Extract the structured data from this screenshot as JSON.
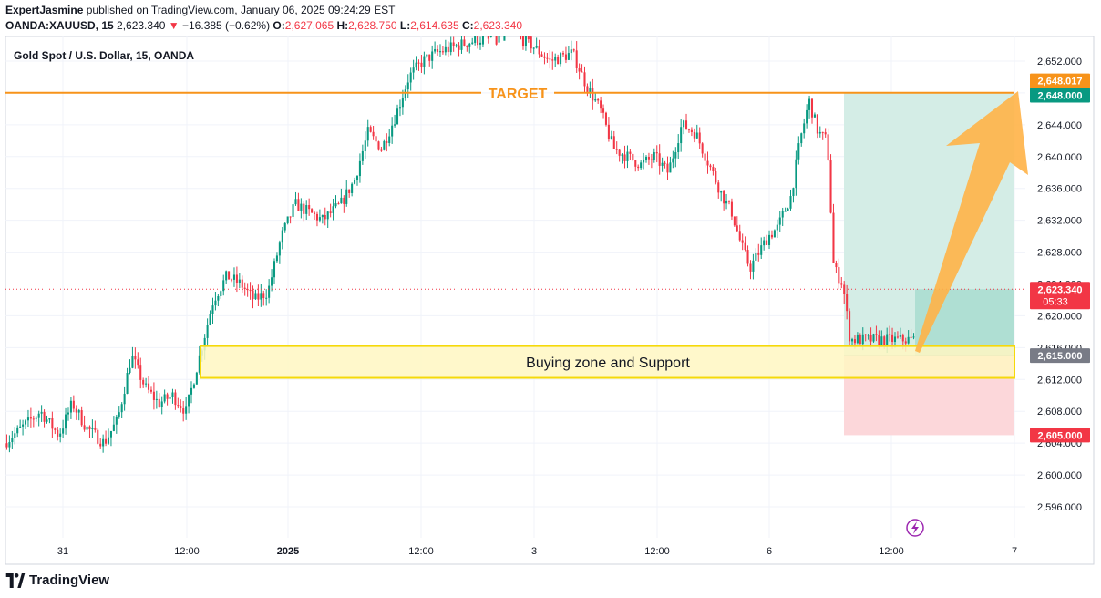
{
  "header": {
    "author": "ExpertJasmine",
    "published": "published on TradingView.com, January 06, 2025 09:24:29 EST",
    "symbol": "OANDA:XAUUSD, 15",
    "last": "2,623.340",
    "change": "−16.385 (−0.62%)",
    "open_label": "O:",
    "open": "2,627.065",
    "high_label": "H:",
    "high": "2,628.750",
    "low_label": "L:",
    "low": "2,614.635",
    "close_label": "C:",
    "close": "2,623.340"
  },
  "legend": {
    "title": "Gold Spot / U.S. Dollar, 15, OANDA"
  },
  "annotations": {
    "target_text": "TARGET",
    "zone_text": "Buying zone and Support"
  },
  "price_axis": {
    "ticks": [
      "2,652.000",
      "2,648.000",
      "2,644.000",
      "2,640.000",
      "2,636.000",
      "2,632.000",
      "2,628.000",
      "2,624.000",
      "2,620.000",
      "2,616.000",
      "2,612.000",
      "2,608.000",
      "2,604.000",
      "2,600.000",
      "2,596.000"
    ],
    "badges": {
      "target_line": "2,648.017",
      "take_profit": "2,648.000",
      "current": "2,623.340",
      "countdown": "05:33",
      "entry": "2,615.000",
      "stop_loss": "2,605.000"
    }
  },
  "time_axis": {
    "labels": [
      "31",
      "12:00",
      "2025",
      "12:00",
      "3",
      "12:00",
      "6",
      "12:00",
      "7"
    ]
  },
  "footer": {
    "brand": "TradingView"
  },
  "colors": {
    "up": "#089981",
    "down": "#f23645",
    "target": "#f7931a",
    "zone_fill": "#fff7c2",
    "zone_stroke": "#f5d90a",
    "arrow": "#ffb347",
    "tp_fill": "#d4ede6",
    "sl_fill": "#fcd7da"
  },
  "chart_data": {
    "type": "candlestick",
    "symbol": "OANDA:XAUUSD",
    "interval": "15",
    "y_range": [
      2592,
      2654
    ],
    "key_levels": {
      "target": 2648.017,
      "take_profit": 2648.0,
      "current": 2623.34,
      "entry": 2615.0,
      "stop_loss": 2605.0,
      "zone_top": 2616.2,
      "zone_bottom": 2612.2
    },
    "path": [
      [
        0,
        2604
      ],
      [
        0.02,
        2606
      ],
      [
        0.04,
        2608
      ],
      [
        0.06,
        2605
      ],
      [
        0.075,
        2609
      ],
      [
        0.09,
        2606
      ],
      [
        0.11,
        2604
      ],
      [
        0.125,
        2607
      ],
      [
        0.14,
        2615
      ],
      [
        0.155,
        2611
      ],
      [
        0.17,
        2609
      ],
      [
        0.185,
        2610
      ],
      [
        0.2,
        2608
      ],
      [
        0.215,
        2615
      ],
      [
        0.23,
        2622
      ],
      [
        0.245,
        2625
      ],
      [
        0.26,
        2624
      ],
      [
        0.275,
        2622
      ],
      [
        0.29,
        2623
      ],
      [
        0.305,
        2630
      ],
      [
        0.32,
        2634
      ],
      [
        0.335,
        2633
      ],
      [
        0.35,
        2632
      ],
      [
        0.37,
        2634
      ],
      [
        0.385,
        2637
      ],
      [
        0.4,
        2643
      ],
      [
        0.415,
        2641
      ],
      [
        0.43,
        2645
      ],
      [
        0.445,
        2650
      ],
      [
        0.46,
        2652
      ],
      [
        0.475,
        2653
      ],
      [
        0.5,
        2654
      ],
      [
        0.53,
        2655
      ],
      [
        0.56,
        2656
      ],
      [
        0.58,
        2654
      ],
      [
        0.6,
        2652
      ],
      [
        0.625,
        2653
      ],
      [
        0.64,
        2649
      ],
      [
        0.655,
        2646
      ],
      [
        0.67,
        2641
      ],
      [
        0.685,
        2640
      ],
      [
        0.7,
        2639
      ],
      [
        0.715,
        2640
      ],
      [
        0.73,
        2638
      ],
      [
        0.745,
        2644
      ],
      [
        0.76,
        2643
      ],
      [
        0.775,
        2639
      ],
      [
        0.79,
        2635
      ],
      [
        0.8,
        2633
      ],
      [
        0.81,
        2629
      ],
      [
        0.82,
        2626
      ],
      [
        0.83,
        2628
      ],
      [
        0.84,
        2630
      ],
      [
        0.85,
        2631
      ],
      [
        0.865,
        2635
      ],
      [
        0.875,
        2642
      ],
      [
        0.885,
        2647
      ],
      [
        0.895,
        2643
      ],
      [
        0.905,
        2642
      ],
      [
        0.912,
        2626
      ],
      [
        0.922,
        2624
      ],
      [
        0.93,
        2617
      ]
    ]
  }
}
